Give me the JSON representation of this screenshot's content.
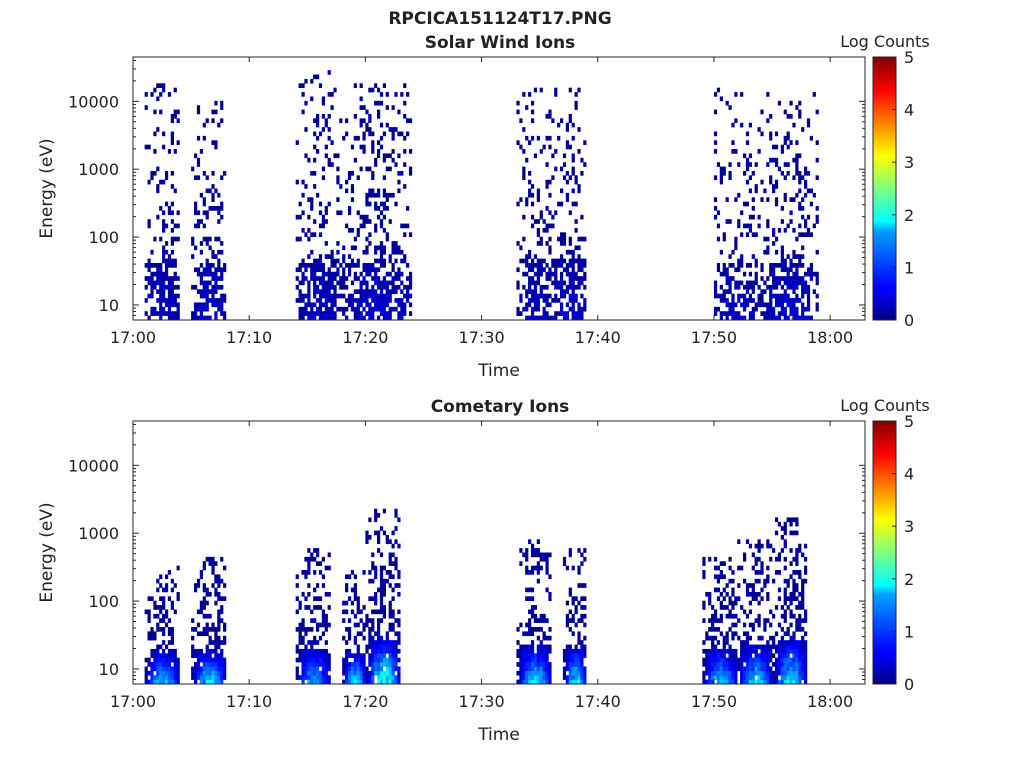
{
  "figure": {
    "title": "RPCICA151124T17.PNG"
  },
  "chart_data": [
    {
      "type": "heatmap",
      "title": "Solar Wind Ions",
      "xlabel": "Time",
      "ylabel": "Energy (eV)",
      "y_scale": "log",
      "xlim": [
        "17:00",
        "18:03"
      ],
      "ylim": [
        6,
        45000
      ],
      "x_ticks": [
        "17:00",
        "17:10",
        "17:20",
        "17:30",
        "17:40",
        "17:50",
        "18:00"
      ],
      "y_ticks": [
        "10",
        "100",
        "1000",
        "10000"
      ],
      "colorbar": {
        "label": "Log Counts",
        "range": [
          0,
          5
        ],
        "ticks": [
          "0",
          "1",
          "2",
          "3",
          "4",
          "5"
        ],
        "colormap": "jet"
      },
      "bursts": [
        {
          "start": "17:01",
          "end": "17:04",
          "emax": 18000,
          "core_max_log": 0.3,
          "density": 0.32
        },
        {
          "start": "17:05",
          "end": "17:08",
          "emax": 12000,
          "core_max_log": 0.4,
          "density": 0.32
        },
        {
          "start": "17:14",
          "end": "17:18",
          "emax": 25000,
          "core_max_log": 0.3,
          "density": 0.34
        },
        {
          "start": "17:18",
          "end": "17:24",
          "emax": 20000,
          "core_max_log": 0.4,
          "density": 0.34
        },
        {
          "start": "17:33",
          "end": "17:36",
          "emax": 15000,
          "core_max_log": 0.3,
          "density": 0.3
        },
        {
          "start": "17:36",
          "end": "17:39",
          "emax": 15000,
          "core_max_log": 0.4,
          "density": 0.3
        },
        {
          "start": "17:50",
          "end": "17:54",
          "emax": 15000,
          "core_max_log": 0.3,
          "density": 0.3
        },
        {
          "start": "17:54",
          "end": "17:59",
          "emax": 12000,
          "core_max_log": 0.4,
          "density": 0.3
        }
      ]
    },
    {
      "type": "heatmap",
      "title": "Cometary Ions",
      "xlabel": "Time",
      "ylabel": "Energy (eV)",
      "y_scale": "log",
      "xlim": [
        "17:00",
        "18:03"
      ],
      "ylim": [
        6,
        45000
      ],
      "x_ticks": [
        "17:00",
        "17:10",
        "17:20",
        "17:30",
        "17:40",
        "17:50",
        "18:00"
      ],
      "y_ticks": [
        "10",
        "100",
        "1000",
        "10000"
      ],
      "colorbar": {
        "label": "Log Counts",
        "range": [
          0,
          5
        ],
        "ticks": [
          "0",
          "1",
          "2",
          "3",
          "4",
          "5"
        ],
        "colormap": "jet"
      },
      "bursts": [
        {
          "start": "17:01",
          "end": "17:04",
          "emax": 300,
          "core_max_log": 1.8,
          "density": 0.55
        },
        {
          "start": "17:05",
          "end": "17:08",
          "emax": 400,
          "core_max_log": 1.9,
          "density": 0.55
        },
        {
          "start": "17:14",
          "end": "17:17",
          "emax": 600,
          "core_max_log": 1.6,
          "density": 0.55
        },
        {
          "start": "17:18",
          "end": "17:20",
          "emax": 300,
          "core_max_log": 2.0,
          "density": 0.6
        },
        {
          "start": "17:20",
          "end": "17:23",
          "emax": 2200,
          "core_max_log": 2.3,
          "density": 0.6
        },
        {
          "start": "17:33",
          "end": "17:36",
          "emax": 700,
          "core_max_log": 1.9,
          "density": 0.55
        },
        {
          "start": "17:37",
          "end": "17:39",
          "emax": 550,
          "core_max_log": 2.0,
          "density": 0.55
        },
        {
          "start": "17:49",
          "end": "17:52",
          "emax": 500,
          "core_max_log": 1.8,
          "density": 0.6
        },
        {
          "start": "17:52",
          "end": "17:55",
          "emax": 700,
          "core_max_log": 1.9,
          "density": 0.6
        },
        {
          "start": "17:55",
          "end": "17:58",
          "emax": 1700,
          "core_max_log": 2.0,
          "density": 0.6
        }
      ]
    }
  ]
}
